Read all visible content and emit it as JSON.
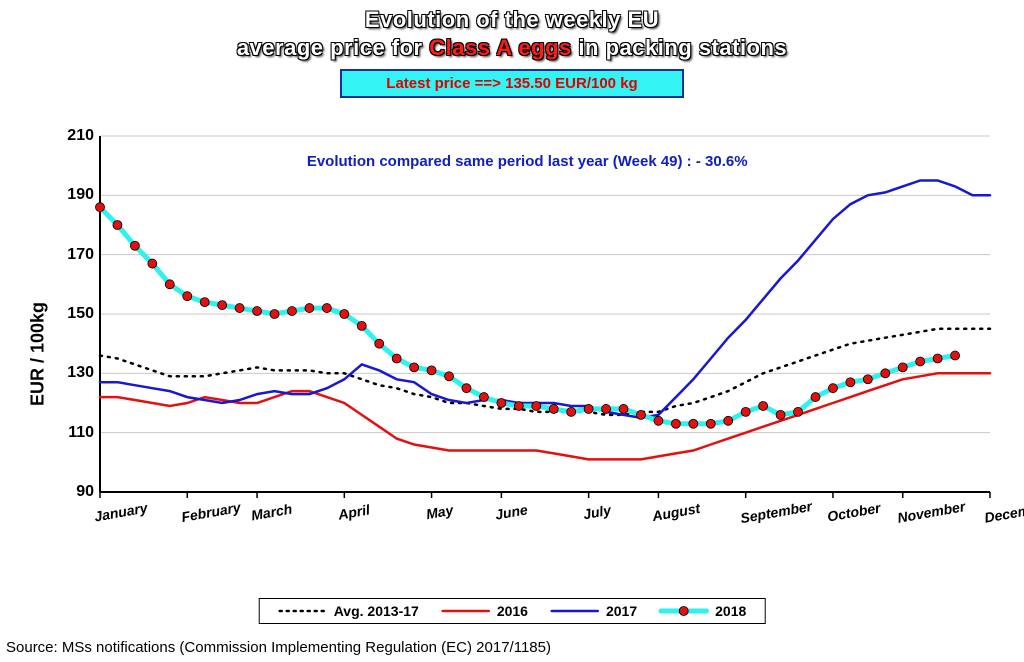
{
  "title": {
    "line1": "Evolution of the weekly EU",
    "line2_pre": "average price for ",
    "line2_red": "Class A eggs",
    "line2_post": " in packing stations"
  },
  "price_badge": {
    "text": "Latest price   ==>   135.50   EUR/100 kg",
    "text_color": "#e00000",
    "bg_color": "#33f3f3",
    "border_color": "#1030a0"
  },
  "evo_line": {
    "text": "Evolution compared same period last year (Week 49) :  - 30.6%",
    "color": "#1020c0"
  },
  "chart": {
    "type": "line",
    "background_color": "#ffffff",
    "grid_color": "#c8c8c8",
    "axis_color": "#000000",
    "ylabel": "EUR / 100kg",
    "ylabel_fontsize": 18,
    "ylim": [
      90,
      210
    ],
    "ytick_step": 20,
    "x_categories": [
      "January",
      "February",
      "March",
      "April",
      "May",
      "June",
      "July",
      "August",
      "September",
      "October",
      "November",
      "December"
    ],
    "weeks": 52,
    "x_rotation_deg": -10,
    "series": [
      {
        "name": "Avg. 2013-17",
        "legend_label": "Avg. 2013-17",
        "color": "#000000",
        "style": "dotted",
        "line_width": 2.5,
        "markers": false,
        "values": [
          136,
          135,
          133,
          131,
          129,
          129,
          129,
          130,
          131,
          132,
          131,
          131,
          131,
          130,
          130,
          128,
          126,
          125,
          123,
          122,
          120,
          120,
          119,
          118,
          118,
          117,
          117,
          117,
          117,
          116,
          116,
          117,
          117,
          119,
          120,
          122,
          124,
          127,
          130,
          132,
          134,
          136,
          138,
          140,
          141,
          142,
          143,
          144,
          145,
          145,
          145,
          145
        ]
      },
      {
        "name": "2016",
        "legend_label": "2016",
        "color": "#e31010",
        "style": "solid",
        "line_width": 2.5,
        "markers": false,
        "values": [
          122,
          122,
          121,
          120,
          119,
          120,
          122,
          121,
          120,
          120,
          122,
          124,
          124,
          122,
          120,
          116,
          112,
          108,
          106,
          105,
          104,
          104,
          104,
          104,
          104,
          104,
          103,
          102,
          101,
          101,
          101,
          101,
          102,
          103,
          104,
          106,
          108,
          110,
          112,
          114,
          116,
          118,
          120,
          122,
          124,
          126,
          128,
          129,
          130,
          130,
          130,
          130
        ]
      },
      {
        "name": "2017",
        "legend_label": "2017",
        "color": "#1818d0",
        "style": "solid",
        "line_width": 2.5,
        "markers": false,
        "values": [
          127,
          127,
          126,
          125,
          124,
          122,
          121,
          120,
          121,
          123,
          124,
          123,
          123,
          125,
          128,
          133,
          131,
          128,
          127,
          123,
          121,
          120,
          121,
          121,
          120,
          120,
          120,
          119,
          119,
          117,
          116,
          115,
          116,
          122,
          128,
          135,
          142,
          148,
          155,
          162,
          168,
          175,
          182,
          187,
          190,
          191,
          193,
          195,
          195,
          193,
          190,
          190
        ]
      },
      {
        "name": "2018",
        "legend_label": "2018",
        "color_line": "#30f0f0",
        "color_marker_fill": "#e31010",
        "color_marker_stroke": "#000000",
        "style": "solid",
        "line_width": 5,
        "markers": true,
        "marker_radius": 4.5,
        "values": [
          186,
          180,
          173,
          167,
          160,
          156,
          154,
          153,
          152,
          151,
          150,
          151,
          152,
          152,
          150,
          146,
          140,
          135,
          132,
          131,
          129,
          125,
          122,
          120,
          119,
          119,
          118,
          117,
          118,
          118,
          118,
          116,
          114,
          113,
          113,
          113,
          114,
          117,
          119,
          116,
          117,
          122,
          125,
          127,
          128,
          130,
          132,
          134,
          135,
          136
        ]
      }
    ]
  },
  "legend": {
    "border_color": "#000000",
    "bg_color": "#ffffff"
  },
  "source": "Source: MSs notifications (Commission Implementing Regulation (EC) 2017/1185)"
}
